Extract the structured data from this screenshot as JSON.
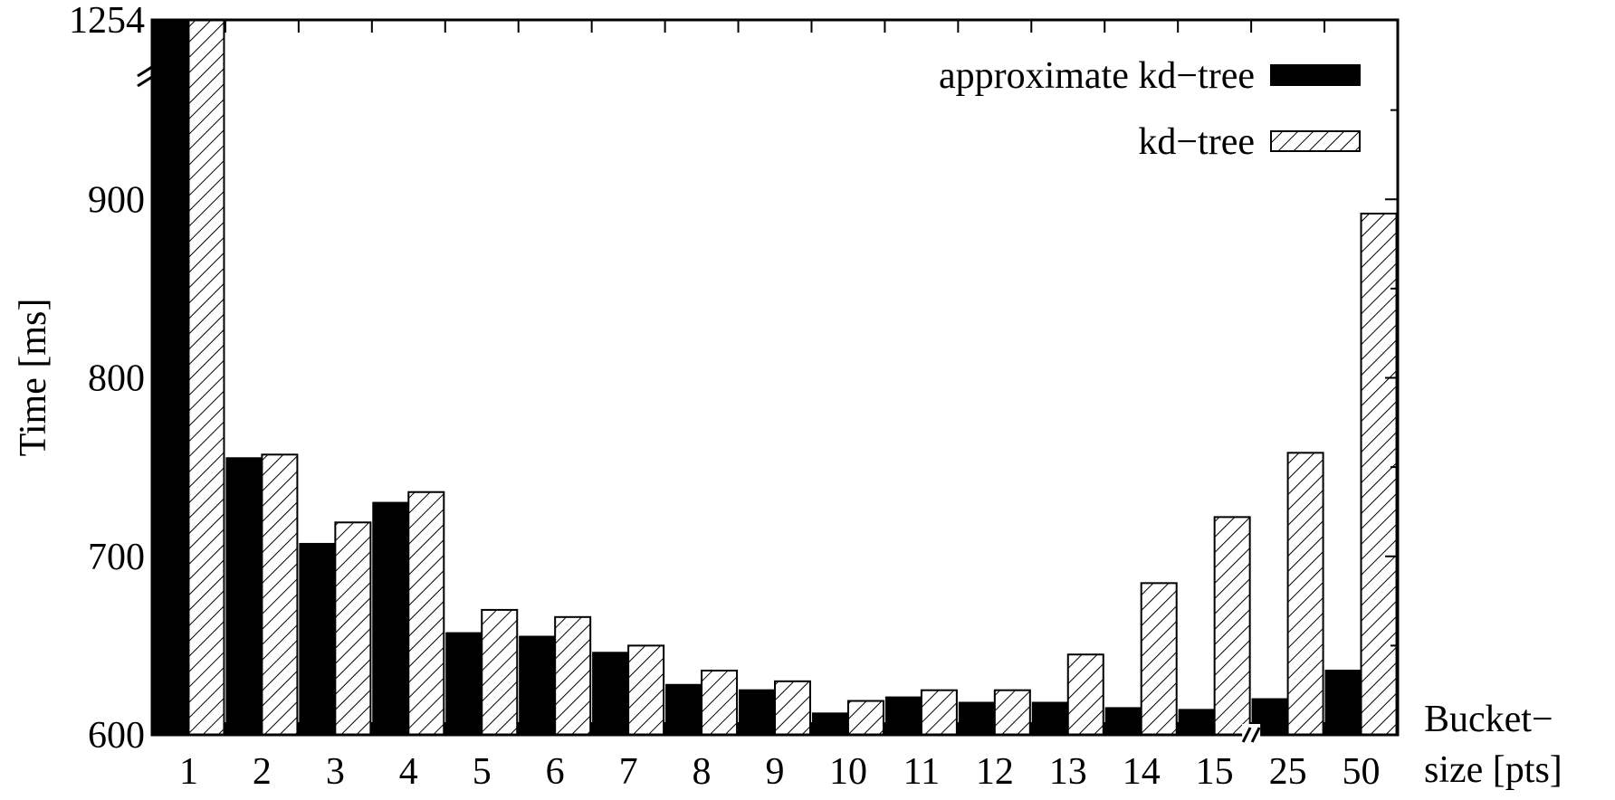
{
  "chart_data": {
    "type": "bar",
    "categories": [
      "1",
      "2",
      "3",
      "4",
      "5",
      "6",
      "7",
      "8",
      "9",
      "10",
      "11",
      "12",
      "13",
      "14",
      "15",
      "25",
      "50"
    ],
    "series": [
      {
        "name": "approximate kd−tree",
        "color": "#000000",
        "pattern": "solid",
        "values": [
          1254,
          755,
          707,
          730,
          657,
          655,
          646,
          628,
          625,
          612,
          621,
          618,
          618,
          615,
          614,
          620,
          636
        ]
      },
      {
        "name": "kd−tree",
        "color": "#ffffff",
        "pattern": "hatched",
        "values": [
          1254,
          757,
          719,
          736,
          670,
          666,
          650,
          636,
          630,
          619,
          625,
          625,
          645,
          685,
          722,
          758,
          892
        ]
      }
    ],
    "ylabel": "Time [ms]",
    "xlabel_lines": [
      "Bucket−",
      "size [pts]"
    ],
    "yticks": [
      "600",
      "700",
      "800",
      "900",
      "1254"
    ],
    "ylim": [
      600,
      1000
    ],
    "y_break": {
      "top_label": "1254",
      "marker": "»"
    },
    "x_break": {
      "between": [
        "15",
        "25"
      ],
      "marker": "»"
    },
    "legend_position": "top-right",
    "grid": false
  }
}
